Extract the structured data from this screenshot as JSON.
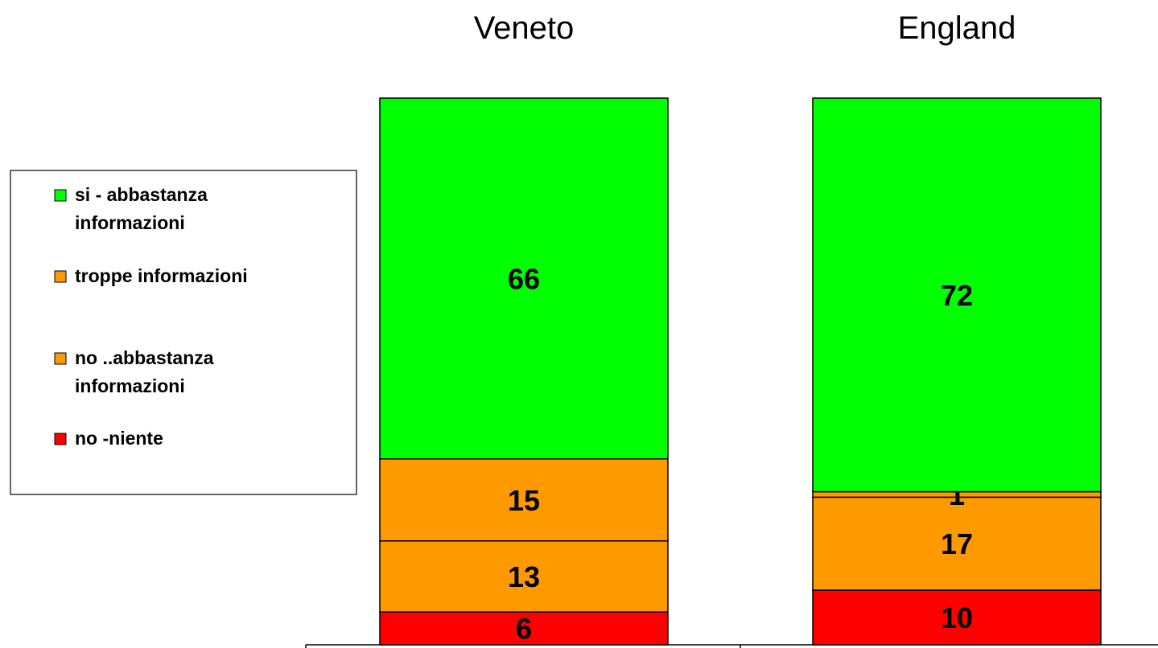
{
  "chart_data": {
    "type": "bar",
    "stacked": true,
    "orientation": "vertical",
    "categories": [
      "Veneto",
      "England"
    ],
    "series": [
      {
        "name": "no -niente",
        "color": "#ff0000",
        "values": [
          6,
          10
        ]
      },
      {
        "name": "no ..abbastanza informazioni",
        "color": "#ff9900",
        "values": [
          13,
          17
        ]
      },
      {
        "name": "troppe informazioni",
        "color": "#ff9900",
        "values": [
          15,
          1
        ]
      },
      {
        "name": "si - abbastanza informazioni",
        "color": "#00ff00",
        "values": [
          66,
          72
        ]
      }
    ],
    "ylim": [
      0,
      100
    ],
    "grid": false,
    "legend_position": "left",
    "legend_order": [
      {
        "label_lines": [
          "si - abbastanza",
          "informazioni"
        ],
        "color": "#00ff00"
      },
      {
        "label_lines": [
          "troppe informazioni"
        ],
        "color": "#ff9900"
      },
      {
        "label_lines": [
          "no ..abbastanza",
          "informazioni"
        ],
        "color": "#ff9900"
      },
      {
        "label_lines": [
          "no -niente"
        ],
        "color": "#ff0000"
      }
    ]
  }
}
